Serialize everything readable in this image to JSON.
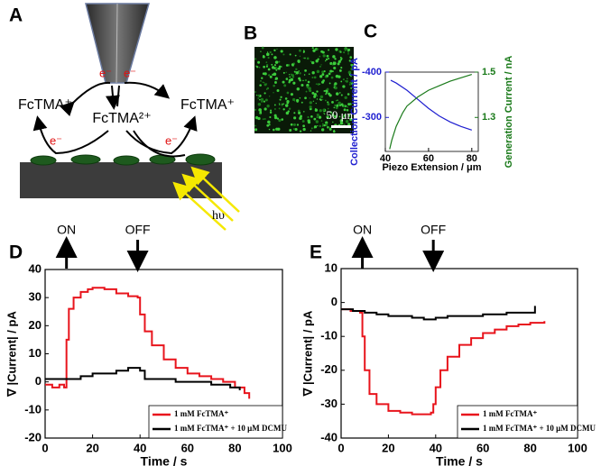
{
  "panel_labels": [
    "A",
    "B",
    "C",
    "D",
    "E"
  ],
  "diagram": {
    "species_left": "FcTMA⁺",
    "species_center": "FcTMA²⁺",
    "species_right": "FcTMA⁺",
    "electron_labels": [
      "e⁻",
      "e⁻",
      "e⁻",
      "e⁻"
    ],
    "light": "hυ"
  },
  "image": {
    "scale_bar": "50 μm"
  },
  "chart_data": [
    {
      "type": "line",
      "xlabel": "Piezo Extension / μm",
      "ylabel": "Collection Current / pA",
      "y2label": "Generation Current / nA",
      "xlim": [
        40,
        83
      ],
      "xticks": [
        40,
        60,
        80
      ],
      "ylim": [
        -225,
        -400
      ],
      "yticks": [
        -400,
        -300
      ],
      "y2lim": [
        1.15,
        1.5
      ],
      "y2ticks": [
        1.5,
        1.3
      ],
      "series": [
        {
          "color": "#1f1fd0",
          "x": [
            42.5,
            45,
            50,
            55,
            60,
            65,
            70,
            75,
            80
          ],
          "values": [
            -382,
            -376,
            -360,
            -340,
            -320,
            -303,
            -290,
            -280,
            -272
          ]
        },
        {
          "color": "#1a7a1a",
          "axis": "y2",
          "x": [
            42,
            43,
            45,
            48,
            50,
            55,
            60,
            65,
            70,
            75,
            80
          ],
          "values": [
            1.16,
            1.2,
            1.26,
            1.32,
            1.35,
            1.39,
            1.42,
            1.44,
            1.46,
            1.475,
            1.49
          ]
        }
      ]
    },
    {
      "type": "line",
      "xlabel": "Time / s",
      "ylabel": "∇ |Current| / pA",
      "xlim": [
        0,
        100
      ],
      "xticks": [
        0,
        20,
        40,
        60,
        80,
        100
      ],
      "ylim": [
        -20,
        40
      ],
      "yticks": [
        -20,
        -10,
        0,
        10,
        20,
        30,
        40
      ],
      "annotations": [
        {
          "text": "ON",
          "x": 9,
          "direction": "up"
        },
        {
          "text": "OFF",
          "x": 39,
          "direction": "down"
        }
      ],
      "legend": "lower right",
      "series": [
        {
          "name": "1 mM FcTMA⁺",
          "color": "#e8141c",
          "x": [
            0,
            3,
            6,
            8,
            9,
            10,
            12,
            15,
            18,
            20,
            25,
            30,
            35,
            39,
            40,
            42,
            45,
            50,
            55,
            60,
            65,
            70,
            75,
            80,
            84,
            86
          ],
          "values": [
            -1,
            -2,
            -1,
            -2,
            15,
            26,
            30,
            32,
            33,
            33.5,
            33,
            31.5,
            30.5,
            30,
            24,
            18,
            13,
            8,
            5,
            3,
            2,
            1,
            0,
            -2,
            -4,
            -6
          ]
        },
        {
          "name": "1 mM FcTMA⁺ + 10 μM DCMU",
          "color": "#000000",
          "x": [
            0,
            5,
            10,
            15,
            20,
            25,
            30,
            35,
            38,
            40,
            42,
            45,
            50,
            55,
            60,
            65,
            70,
            75,
            78,
            80,
            82
          ],
          "values": [
            1,
            1,
            1,
            2,
            3,
            3,
            4,
            5,
            5,
            4,
            1,
            1,
            1,
            0,
            0,
            0,
            -1,
            -1,
            -2,
            -2,
            -3
          ]
        }
      ]
    },
    {
      "type": "line",
      "xlabel": "Time / s",
      "ylabel": "∇ |Current| / pA",
      "xlim": [
        0,
        100
      ],
      "xticks": [
        0,
        20,
        40,
        60,
        80,
        100
      ],
      "ylim": [
        -40,
        10
      ],
      "yticks": [
        -40,
        -30,
        -20,
        -10,
        0,
        10
      ],
      "annotations": [
        {
          "text": "ON",
          "x": 9,
          "direction": "up"
        },
        {
          "text": "OFF",
          "x": 39,
          "direction": "down"
        }
      ],
      "legend": "lower right",
      "series": [
        {
          "name": "1 mM FcTMA⁺",
          "color": "#e8141c",
          "x": [
            0,
            4,
            8,
            9,
            10,
            12,
            15,
            20,
            25,
            30,
            35,
            38,
            39,
            40,
            42,
            45,
            50,
            55,
            60,
            65,
            70,
            75,
            80,
            86
          ],
          "values": [
            -2,
            -2.5,
            -3,
            -10,
            -20,
            -27,
            -30,
            -32,
            -32.5,
            -33,
            -33,
            -32.5,
            -30,
            -25,
            -20,
            -16,
            -12.5,
            -10.5,
            -9,
            -8,
            -7,
            -6.5,
            -6,
            -5.5
          ]
        },
        {
          "name": "1 mM FcTMA⁺ + 10 μM DCMU",
          "color": "#000000",
          "x": [
            0,
            5,
            10,
            15,
            20,
            25,
            30,
            35,
            40,
            45,
            50,
            55,
            60,
            65,
            70,
            75,
            80,
            82
          ],
          "values": [
            -2,
            -2.5,
            -3,
            -3.5,
            -4,
            -4,
            -4.5,
            -5,
            -4.5,
            -4,
            -4,
            -4,
            -3.5,
            -3.5,
            -3,
            -3,
            -3,
            -1
          ]
        }
      ]
    }
  ]
}
